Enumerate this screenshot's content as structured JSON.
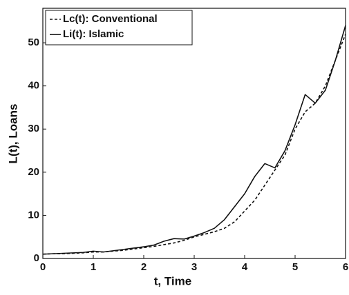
{
  "chart_data": {
    "type": "line",
    "xlabel": "t, Time",
    "ylabel": "L(t), Loans",
    "x": [
      0,
      0.2,
      0.4,
      0.6,
      0.8,
      1.0,
      1.2,
      1.4,
      1.6,
      1.8,
      2.0,
      2.2,
      2.4,
      2.6,
      2.8,
      3.0,
      3.2,
      3.4,
      3.6,
      3.8,
      4.0,
      4.2,
      4.4,
      4.6,
      4.8,
      5.0,
      5.2,
      5.4,
      5.6,
      5.8,
      6.0
    ],
    "series": [
      {
        "name": "Lc(t): Conventional",
        "color": "#111111",
        "style": "dashed",
        "values": [
          1.0,
          1.1,
          1.1,
          1.2,
          1.3,
          1.5,
          1.5,
          1.7,
          1.9,
          2.2,
          2.5,
          2.8,
          3.2,
          3.6,
          4.2,
          5.0,
          5.6,
          6.2,
          7.0,
          8.5,
          11.0,
          13.5,
          17.0,
          20.5,
          24.0,
          30.0,
          34.0,
          36.0,
          40.0,
          46.0,
          52.0
        ]
      },
      {
        "name": "Li(t): Islamic",
        "color": "#111111",
        "style": "solid",
        "values": [
          1.0,
          1.1,
          1.2,
          1.3,
          1.4,
          1.7,
          1.5,
          1.8,
          2.1,
          2.4,
          2.7,
          3.1,
          4.0,
          4.6,
          4.5,
          5.2,
          6.0,
          7.0,
          9.0,
          12.0,
          15.0,
          19.0,
          22.0,
          21.0,
          25.0,
          31.0,
          38.0,
          36.0,
          39.0,
          46.0,
          54.0
        ]
      }
    ],
    "xlim": [
      0,
      6
    ],
    "xticks": [
      0,
      1,
      2,
      3,
      4,
      5,
      6
    ],
    "ylim": [
      0,
      58
    ],
    "yticks": [
      0,
      10,
      20,
      30,
      40,
      50
    ],
    "legend": "upper-left"
  }
}
